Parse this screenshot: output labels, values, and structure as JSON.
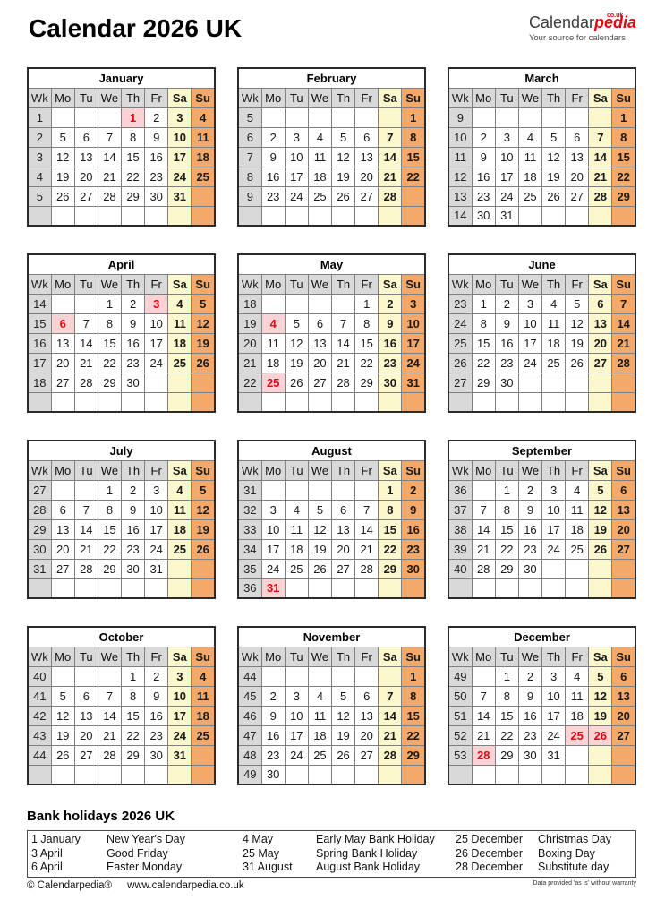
{
  "header": {
    "title": "Calendar 2026 UK",
    "logo": {
      "black": "Calendar",
      "red": "pedia",
      "sup": "co.uk",
      "tagline": "Your source for calendars"
    }
  },
  "day_headers": [
    "Wk",
    "Mo",
    "Tu",
    "We",
    "Th",
    "Fr",
    "Sa",
    "Su"
  ],
  "months": [
    {
      "name": "January",
      "holidays": [
        1
      ],
      "weeks": [
        {
          "wk": 1,
          "days": [
            "",
            "",
            "",
            1,
            2,
            3,
            4
          ]
        },
        {
          "wk": 2,
          "days": [
            5,
            6,
            7,
            8,
            9,
            10,
            11
          ]
        },
        {
          "wk": 3,
          "days": [
            12,
            13,
            14,
            15,
            16,
            17,
            18
          ]
        },
        {
          "wk": 4,
          "days": [
            19,
            20,
            21,
            22,
            23,
            24,
            25
          ]
        },
        {
          "wk": 5,
          "days": [
            26,
            27,
            28,
            29,
            30,
            31,
            ""
          ]
        },
        {
          "wk": "",
          "days": [
            "",
            "",
            "",
            "",
            "",
            "",
            ""
          ]
        }
      ]
    },
    {
      "name": "February",
      "holidays": [],
      "weeks": [
        {
          "wk": 5,
          "days": [
            "",
            "",
            "",
            "",
            "",
            "",
            1
          ]
        },
        {
          "wk": 6,
          "days": [
            2,
            3,
            4,
            5,
            6,
            7,
            8
          ]
        },
        {
          "wk": 7,
          "days": [
            9,
            10,
            11,
            12,
            13,
            14,
            15
          ]
        },
        {
          "wk": 8,
          "days": [
            16,
            17,
            18,
            19,
            20,
            21,
            22
          ]
        },
        {
          "wk": 9,
          "days": [
            23,
            24,
            25,
            26,
            27,
            28,
            ""
          ]
        },
        {
          "wk": "",
          "days": [
            "",
            "",
            "",
            "",
            "",
            "",
            ""
          ]
        }
      ]
    },
    {
      "name": "March",
      "holidays": [],
      "weeks": [
        {
          "wk": 9,
          "days": [
            "",
            "",
            "",
            "",
            "",
            "",
            1
          ]
        },
        {
          "wk": 10,
          "days": [
            2,
            3,
            4,
            5,
            6,
            7,
            8
          ]
        },
        {
          "wk": 11,
          "days": [
            9,
            10,
            11,
            12,
            13,
            14,
            15
          ]
        },
        {
          "wk": 12,
          "days": [
            16,
            17,
            18,
            19,
            20,
            21,
            22
          ]
        },
        {
          "wk": 13,
          "days": [
            23,
            24,
            25,
            26,
            27,
            28,
            29
          ]
        },
        {
          "wk": 14,
          "days": [
            30,
            31,
            "",
            "",
            "",
            "",
            ""
          ]
        }
      ]
    },
    {
      "name": "April",
      "holidays": [
        3,
        6
      ],
      "weeks": [
        {
          "wk": 14,
          "days": [
            "",
            "",
            1,
            2,
            3,
            4,
            5
          ]
        },
        {
          "wk": 15,
          "days": [
            6,
            7,
            8,
            9,
            10,
            11,
            12
          ]
        },
        {
          "wk": 16,
          "days": [
            13,
            14,
            15,
            16,
            17,
            18,
            19
          ]
        },
        {
          "wk": 17,
          "days": [
            20,
            21,
            22,
            23,
            24,
            25,
            26
          ]
        },
        {
          "wk": 18,
          "days": [
            27,
            28,
            29,
            30,
            "",
            "",
            ""
          ]
        },
        {
          "wk": "",
          "days": [
            "",
            "",
            "",
            "",
            "",
            "",
            ""
          ]
        }
      ]
    },
    {
      "name": "May",
      "holidays": [
        4,
        25
      ],
      "weeks": [
        {
          "wk": 18,
          "days": [
            "",
            "",
            "",
            "",
            1,
            2,
            3
          ]
        },
        {
          "wk": 19,
          "days": [
            4,
            5,
            6,
            7,
            8,
            9,
            10
          ]
        },
        {
          "wk": 20,
          "days": [
            11,
            12,
            13,
            14,
            15,
            16,
            17
          ]
        },
        {
          "wk": 21,
          "days": [
            18,
            19,
            20,
            21,
            22,
            23,
            24
          ]
        },
        {
          "wk": 22,
          "days": [
            25,
            26,
            27,
            28,
            29,
            30,
            31
          ]
        },
        {
          "wk": "",
          "days": [
            "",
            "",
            "",
            "",
            "",
            "",
            ""
          ]
        }
      ]
    },
    {
      "name": "June",
      "holidays": [],
      "weeks": [
        {
          "wk": 23,
          "days": [
            1,
            2,
            3,
            4,
            5,
            6,
            7
          ]
        },
        {
          "wk": 24,
          "days": [
            8,
            9,
            10,
            11,
            12,
            13,
            14
          ]
        },
        {
          "wk": 25,
          "days": [
            15,
            16,
            17,
            18,
            19,
            20,
            21
          ]
        },
        {
          "wk": 26,
          "days": [
            22,
            23,
            24,
            25,
            26,
            27,
            28
          ]
        },
        {
          "wk": 27,
          "days": [
            29,
            30,
            "",
            "",
            "",
            "",
            ""
          ]
        },
        {
          "wk": "",
          "days": [
            "",
            "",
            "",
            "",
            "",
            "",
            ""
          ]
        }
      ]
    },
    {
      "name": "July",
      "holidays": [],
      "weeks": [
        {
          "wk": 27,
          "days": [
            "",
            "",
            1,
            2,
            3,
            4,
            5
          ]
        },
        {
          "wk": 28,
          "days": [
            6,
            7,
            8,
            9,
            10,
            11,
            12
          ]
        },
        {
          "wk": 29,
          "days": [
            13,
            14,
            15,
            16,
            17,
            18,
            19
          ]
        },
        {
          "wk": 30,
          "days": [
            20,
            21,
            22,
            23,
            24,
            25,
            26
          ]
        },
        {
          "wk": 31,
          "days": [
            27,
            28,
            29,
            30,
            31,
            "",
            ""
          ]
        },
        {
          "wk": "",
          "days": [
            "",
            "",
            "",
            "",
            "",
            "",
            ""
          ]
        }
      ]
    },
    {
      "name": "August",
      "holidays": [
        31
      ],
      "weeks": [
        {
          "wk": 31,
          "days": [
            "",
            "",
            "",
            "",
            "",
            1,
            2
          ]
        },
        {
          "wk": 32,
          "days": [
            3,
            4,
            5,
            6,
            7,
            8,
            9
          ]
        },
        {
          "wk": 33,
          "days": [
            10,
            11,
            12,
            13,
            14,
            15,
            16
          ]
        },
        {
          "wk": 34,
          "days": [
            17,
            18,
            19,
            20,
            21,
            22,
            23
          ]
        },
        {
          "wk": 35,
          "days": [
            24,
            25,
            26,
            27,
            28,
            29,
            30
          ]
        },
        {
          "wk": 36,
          "days": [
            31,
            "",
            "",
            "",
            "",
            "",
            ""
          ]
        }
      ]
    },
    {
      "name": "September",
      "holidays": [],
      "weeks": [
        {
          "wk": 36,
          "days": [
            "",
            1,
            2,
            3,
            4,
            5,
            6
          ]
        },
        {
          "wk": 37,
          "days": [
            7,
            8,
            9,
            10,
            11,
            12,
            13
          ]
        },
        {
          "wk": 38,
          "days": [
            14,
            15,
            16,
            17,
            18,
            19,
            20
          ]
        },
        {
          "wk": 39,
          "days": [
            21,
            22,
            23,
            24,
            25,
            26,
            27
          ]
        },
        {
          "wk": 40,
          "days": [
            28,
            29,
            30,
            "",
            "",
            "",
            ""
          ]
        },
        {
          "wk": "",
          "days": [
            "",
            "",
            "",
            "",
            "",
            "",
            ""
          ]
        }
      ]
    },
    {
      "name": "October",
      "holidays": [],
      "weeks": [
        {
          "wk": 40,
          "days": [
            "",
            "",
            "",
            1,
            2,
            3,
            4
          ]
        },
        {
          "wk": 41,
          "days": [
            5,
            6,
            7,
            8,
            9,
            10,
            11
          ]
        },
        {
          "wk": 42,
          "days": [
            12,
            13,
            14,
            15,
            16,
            17,
            18
          ]
        },
        {
          "wk": 43,
          "days": [
            19,
            20,
            21,
            22,
            23,
            24,
            25
          ]
        },
        {
          "wk": 44,
          "days": [
            26,
            27,
            28,
            29,
            30,
            31,
            ""
          ]
        },
        {
          "wk": "",
          "days": [
            "",
            "",
            "",
            "",
            "",
            "",
            ""
          ]
        }
      ]
    },
    {
      "name": "November",
      "holidays": [],
      "weeks": [
        {
          "wk": 44,
          "days": [
            "",
            "",
            "",
            "",
            "",
            "",
            1
          ]
        },
        {
          "wk": 45,
          "days": [
            2,
            3,
            4,
            5,
            6,
            7,
            8
          ]
        },
        {
          "wk": 46,
          "days": [
            9,
            10,
            11,
            12,
            13,
            14,
            15
          ]
        },
        {
          "wk": 47,
          "days": [
            16,
            17,
            18,
            19,
            20,
            21,
            22
          ]
        },
        {
          "wk": 48,
          "days": [
            23,
            24,
            25,
            26,
            27,
            28,
            29
          ]
        },
        {
          "wk": 49,
          "days": [
            30,
            "",
            "",
            "",
            "",
            "",
            ""
          ]
        }
      ]
    },
    {
      "name": "December",
      "holidays": [
        25,
        26,
        28
      ],
      "weeks": [
        {
          "wk": 49,
          "days": [
            "",
            1,
            2,
            3,
            4,
            5,
            6
          ]
        },
        {
          "wk": 50,
          "days": [
            7,
            8,
            9,
            10,
            11,
            12,
            13
          ]
        },
        {
          "wk": 51,
          "days": [
            14,
            15,
            16,
            17,
            18,
            19,
            20
          ]
        },
        {
          "wk": 52,
          "days": [
            21,
            22,
            23,
            24,
            25,
            26,
            27
          ]
        },
        {
          "wk": 53,
          "days": [
            28,
            29,
            30,
            31,
            "",
            "",
            ""
          ]
        },
        {
          "wk": "",
          "days": [
            "",
            "",
            "",
            "",
            "",
            "",
            ""
          ]
        }
      ]
    }
  ],
  "bank_holidays": {
    "title": "Bank holidays 2026 UK",
    "rows": [
      [
        {
          "date": "1 January",
          "name": "New Year's Day"
        },
        {
          "date": "4 May",
          "name": "Early May Bank Holiday"
        },
        {
          "date": "25 December",
          "name": "Christmas Day"
        }
      ],
      [
        {
          "date": "3 April",
          "name": "Good Friday"
        },
        {
          "date": "25 May",
          "name": "Spring Bank Holiday"
        },
        {
          "date": "26 December",
          "name": "Boxing Day"
        }
      ],
      [
        {
          "date": "6 April",
          "name": "Easter Monday"
        },
        {
          "date": "31 August",
          "name": "August Bank Holiday"
        },
        {
          "date": "28 December",
          "name": "Substitute day"
        }
      ]
    ]
  },
  "footer": {
    "copyright": "© Calendarpedia®",
    "url": "www.calendarpedia.co.uk",
    "disclaimer": "Data provided 'as is' without warranty"
  },
  "colors": {
    "accent_red": "#e30613",
    "saturday_bg": "#fcf8cd",
    "sunday_bg": "#f4a96a",
    "holiday_bg": "#fbd3d4",
    "header_gray": "#d9d9d9"
  }
}
